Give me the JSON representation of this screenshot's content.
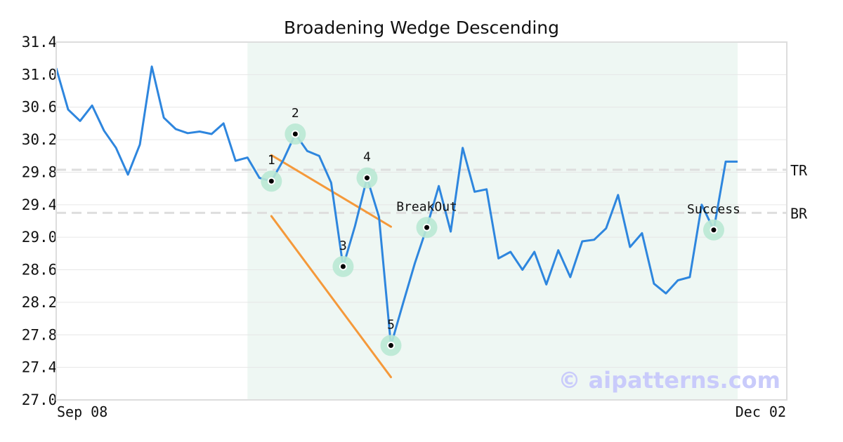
{
  "chart_data": {
    "type": "line",
    "title": "Broadening Wedge Descending",
    "xlabel": "",
    "ylabel": "",
    "x_tick_labels": [
      "Sep 08",
      "Dec 02"
    ],
    "ylim": [
      27.0,
      31.4
    ],
    "y_ticks": [
      "27.0",
      "27.4",
      "27.8",
      "28.2",
      "28.6",
      "29.0",
      "29.4",
      "29.8",
      "30.2",
      "30.6",
      "31.0",
      "31.4"
    ],
    "grid": true,
    "series_color": "#2e86de",
    "values": [
      31.08,
      30.57,
      30.43,
      30.62,
      30.31,
      30.1,
      29.77,
      30.14,
      31.1,
      30.47,
      30.33,
      30.28,
      30.3,
      30.27,
      30.4,
      29.94,
      29.98,
      29.73,
      29.69,
      29.95,
      30.27,
      30.06,
      30.0,
      29.67,
      28.64,
      29.14,
      29.73,
      29.25,
      27.67,
      28.18,
      28.68,
      29.12,
      29.63,
      29.07,
      30.1,
      29.56,
      29.59,
      28.74,
      28.82,
      28.6,
      28.82,
      28.42,
      28.84,
      28.51,
      28.95,
      28.97,
      29.11,
      29.52,
      28.88,
      29.05,
      28.43,
      28.31,
      28.47,
      28.51,
      29.4,
      29.09,
      29.93,
      29.93
    ],
    "highlight_region": {
      "start_index": 16,
      "end_index": 57,
      "color": "#eef7f3"
    },
    "reference_lines": [
      {
        "label": "TR",
        "value": 29.83
      },
      {
        "label": "BR",
        "value": 29.3
      }
    ],
    "trend_lines": [
      {
        "color": "#f5993a",
        "points": [
          [
            18.0,
            30.01
          ],
          [
            28.0,
            29.13
          ]
        ]
      },
      {
        "color": "#f5993a",
        "points": [
          [
            18.0,
            29.26
          ],
          [
            28.0,
            27.28
          ]
        ]
      }
    ],
    "pivot_points": [
      {
        "label": "1",
        "index": 18,
        "value": 29.69
      },
      {
        "label": "2",
        "index": 20,
        "value": 30.27
      },
      {
        "label": "3",
        "index": 24,
        "value": 28.64
      },
      {
        "label": "4",
        "index": 26,
        "value": 29.73
      },
      {
        "label": "5",
        "index": 28,
        "value": 27.67
      },
      {
        "label": "BreakOut",
        "index": 31,
        "value": 29.12
      },
      {
        "label": "Success",
        "index": 55,
        "value": 29.09
      }
    ],
    "marker_halo_color": "#b9e8d4",
    "watermark": "© aipatterns.com"
  }
}
